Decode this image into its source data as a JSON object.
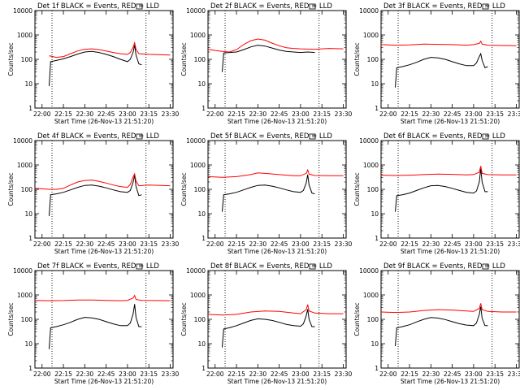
{
  "chart_data": [
    {
      "type": "line",
      "title": "Det 1f BLACK = Events, RED = LLD",
      "xlabel": "Start Time (26-Nov-13 21:51:20)",
      "ylabel": "Counts/sec",
      "xticks": [
        "22:00",
        "22:15",
        "22:30",
        "22:45",
        "23:00",
        "23:15",
        "23:30"
      ],
      "yticks": [
        "1",
        "10",
        "100",
        "1000",
        "10000"
      ],
      "yscale": "log",
      "ylim": [
        1,
        10000
      ],
      "xlim": [
        "21:55",
        "23:32"
      ],
      "vlines": [
        "22:07",
        "23:13"
      ],
      "series": [
        {
          "color": "#000000",
          "x": [
            "22:05",
            "22:06",
            "22:10",
            "22:15",
            "22:20",
            "22:25",
            "22:30",
            "22:35",
            "22:40",
            "22:45",
            "22:50",
            "22:55",
            "23:00",
            "23:02",
            "23:04",
            "23:05",
            "23:06",
            "23:08",
            "23:10"
          ],
          "values": [
            8,
            80,
            90,
            105,
            130,
            165,
            200,
            210,
            190,
            160,
            130,
            100,
            80,
            100,
            200,
            380,
            150,
            65,
            60
          ]
        },
        {
          "color": "#ff0000",
          "x": [
            "22:05",
            "22:10",
            "22:15",
            "22:20",
            "22:25",
            "22:30",
            "22:35",
            "22:40",
            "22:45",
            "22:50",
            "22:55",
            "23:00",
            "23:02",
            "23:04",
            "23:05",
            "23:06",
            "23:08",
            "23:15",
            "23:30"
          ],
          "values": [
            140,
            120,
            130,
            170,
            220,
            260,
            270,
            250,
            220,
            190,
            170,
            160,
            190,
            320,
            480,
            260,
            170,
            160,
            150
          ]
        }
      ]
    },
    {
      "type": "line",
      "title": "Det 2f BLACK = Events, RED = LLD",
      "xlabel": "Start Time (26-Nov-13 21:51:20)",
      "ylabel": "Counts/sec",
      "xticks": [
        "22:00",
        "22:15",
        "22:30",
        "22:45",
        "23:00",
        "23:15",
        "23:30"
      ],
      "yticks": [
        "1",
        "10",
        "100",
        "1000",
        "10000"
      ],
      "yscale": "log",
      "ylim": [
        1,
        10000
      ],
      "xlim": [
        "21:55",
        "23:32"
      ],
      "vlines": [
        "22:07",
        "23:13"
      ],
      "series": [
        {
          "color": "#000000",
          "x": [
            "22:05",
            "22:06",
            "22:10",
            "22:15",
            "22:20",
            "22:25",
            "22:30",
            "22:35",
            "22:40",
            "22:45",
            "22:50",
            "22:55",
            "23:00",
            "23:05",
            "23:10"
          ],
          "values": [
            30,
            180,
            190,
            200,
            250,
            320,
            380,
            350,
            290,
            240,
            210,
            200,
            190,
            200,
            190
          ]
        },
        {
          "color": "#ff0000",
          "x": [
            "21:55",
            "22:00",
            "22:05",
            "22:10",
            "22:15",
            "22:20",
            "22:25",
            "22:30",
            "22:35",
            "22:40",
            "22:45",
            "22:50",
            "22:55",
            "23:00",
            "23:10",
            "23:20",
            "23:30"
          ],
          "values": [
            260,
            230,
            210,
            200,
            250,
            400,
            580,
            680,
            610,
            460,
            360,
            300,
            280,
            270,
            260,
            280,
            270
          ]
        }
      ]
    },
    {
      "type": "line",
      "title": "Det 3f BLACK = Events, RED = LLD",
      "xlabel": "Start Time (26-Nov-13 21:51:20)",
      "ylabel": "Counts/sec",
      "xticks": [
        "22:00",
        "22:15",
        "22:30",
        "22:45",
        "23:00",
        "23:15",
        "23:30"
      ],
      "yticks": [
        "1",
        "10",
        "100",
        "1000",
        "10000"
      ],
      "yscale": "log",
      "ylim": [
        1,
        10000
      ],
      "xlim": [
        "21:55",
        "23:32"
      ],
      "vlines": [
        "22:07",
        "23:13"
      ],
      "series": [
        {
          "color": "#000000",
          "x": [
            "22:05",
            "22:06",
            "22:10",
            "22:15",
            "22:20",
            "22:25",
            "22:30",
            "22:35",
            "22:40",
            "22:45",
            "22:50",
            "22:55",
            "23:00",
            "23:02",
            "23:04",
            "23:05",
            "23:06",
            "23:08",
            "23:10"
          ],
          "values": [
            7,
            45,
            50,
            60,
            75,
            100,
            120,
            115,
            100,
            80,
            65,
            55,
            55,
            70,
            130,
            170,
            90,
            45,
            50
          ]
        },
        {
          "color": "#ff0000",
          "x": [
            "21:55",
            "22:05",
            "22:15",
            "22:25",
            "22:35",
            "22:45",
            "22:55",
            "23:00",
            "23:04",
            "23:05",
            "23:06",
            "23:10",
            "23:20",
            "23:30"
          ],
          "values": [
            400,
            380,
            390,
            420,
            410,
            400,
            380,
            400,
            450,
            550,
            420,
            380,
            370,
            360
          ]
        }
      ]
    },
    {
      "type": "line",
      "title": "Det 4f BLACK = Events, RED = LLD",
      "xlabel": "Start Time (26-Nov-13 21:51:20)",
      "ylabel": "Counts/sec",
      "xticks": [
        "22:00",
        "22:15",
        "22:30",
        "22:45",
        "23:00",
        "23:15",
        "23:30"
      ],
      "yticks": [
        "1",
        "10",
        "100",
        "1000",
        "10000"
      ],
      "yscale": "log",
      "ylim": [
        1,
        10000
      ],
      "xlim": [
        "21:55",
        "23:32"
      ],
      "vlines": [
        "22:07",
        "23:13"
      ],
      "series": [
        {
          "color": "#000000",
          "x": [
            "22:05",
            "22:06",
            "22:10",
            "22:15",
            "22:20",
            "22:25",
            "22:30",
            "22:35",
            "22:40",
            "22:45",
            "22:50",
            "22:55",
            "23:00",
            "23:02",
            "23:04",
            "23:05",
            "23:06",
            "23:08",
            "23:10"
          ],
          "values": [
            8,
            60,
            65,
            75,
            95,
            120,
            145,
            150,
            135,
            115,
            95,
            80,
            75,
            90,
            200,
            380,
            130,
            55,
            60
          ]
        },
        {
          "color": "#ff0000",
          "x": [
            "21:55",
            "22:05",
            "22:10",
            "22:15",
            "22:20",
            "22:25",
            "22:30",
            "22:35",
            "22:40",
            "22:45",
            "22:50",
            "22:55",
            "23:00",
            "23:02",
            "23:04",
            "23:05",
            "23:06",
            "23:08",
            "23:15",
            "23:30"
          ],
          "values": [
            110,
            100,
            100,
            110,
            150,
            200,
            230,
            240,
            210,
            180,
            150,
            130,
            120,
            160,
            330,
            430,
            220,
            140,
            150,
            140
          ]
        }
      ]
    },
    {
      "type": "line",
      "title": "Det 5f BLACK = Events, RED = LLD",
      "xlabel": "Start Time (26-Nov-13 21:51:20)",
      "ylabel": "Counts/sec",
      "xticks": [
        "22:00",
        "22:15",
        "22:30",
        "22:45",
        "23:00",
        "23:15",
        "23:30"
      ],
      "yticks": [
        "1",
        "10",
        "100",
        "1000",
        "10000"
      ],
      "yscale": "log",
      "ylim": [
        1,
        10000
      ],
      "xlim": [
        "21:55",
        "23:32"
      ],
      "vlines": [
        "22:07",
        "23:13"
      ],
      "series": [
        {
          "color": "#000000",
          "x": [
            "22:05",
            "22:06",
            "22:10",
            "22:15",
            "22:20",
            "22:25",
            "22:30",
            "22:35",
            "22:40",
            "22:45",
            "22:50",
            "22:55",
            "23:00",
            "23:02",
            "23:04",
            "23:05",
            "23:06",
            "23:08",
            "23:10"
          ],
          "values": [
            12,
            60,
            65,
            75,
            95,
            120,
            145,
            150,
            135,
            115,
            95,
            80,
            75,
            90,
            180,
            400,
            150,
            70,
            65
          ]
        },
        {
          "color": "#ff0000",
          "x": [
            "21:55",
            "22:05",
            "22:15",
            "22:25",
            "22:30",
            "22:35",
            "22:45",
            "22:55",
            "23:00",
            "23:04",
            "23:05",
            "23:06",
            "23:10",
            "23:20",
            "23:30"
          ],
          "values": [
            330,
            310,
            330,
            400,
            470,
            450,
            400,
            360,
            360,
            450,
            620,
            420,
            370,
            360,
            360
          ]
        }
      ]
    },
    {
      "type": "line",
      "title": "Det 6f BLACK = Events, RED = LLD",
      "xlabel": "Start Time (26-Nov-13 21:51:20)",
      "ylabel": "Counts/sec",
      "xticks": [
        "22:00",
        "22:15",
        "22:30",
        "22:45",
        "23:00",
        "23:15",
        "23:30"
      ],
      "yticks": [
        "1",
        "10",
        "100",
        "1000",
        "10000"
      ],
      "yscale": "log",
      "ylim": [
        1,
        10000
      ],
      "xlim": [
        "21:55",
        "23:32"
      ],
      "vlines": [
        "22:07",
        "23:13"
      ],
      "series": [
        {
          "color": "#000000",
          "x": [
            "22:05",
            "22:06",
            "22:10",
            "22:15",
            "22:20",
            "22:25",
            "22:30",
            "22:35",
            "22:40",
            "22:45",
            "22:50",
            "22:55",
            "23:00",
            "23:02",
            "23:04",
            "23:05",
            "23:06",
            "23:08",
            "23:10"
          ],
          "values": [
            12,
            55,
            60,
            70,
            90,
            115,
            140,
            145,
            130,
            110,
            90,
            75,
            70,
            85,
            200,
            700,
            200,
            80,
            80
          ]
        },
        {
          "color": "#ff0000",
          "x": [
            "21:55",
            "22:05",
            "22:15",
            "22:25",
            "22:35",
            "22:45",
            "22:55",
            "23:00",
            "23:04",
            "23:05",
            "23:06",
            "23:10",
            "23:20",
            "23:30"
          ],
          "values": [
            380,
            370,
            380,
            400,
            420,
            410,
            390,
            400,
            500,
            900,
            450,
            400,
            390,
            390
          ]
        }
      ]
    },
    {
      "type": "line",
      "title": "Det 7f BLACK = Events, RED = LLD",
      "xlabel": "Start Time (26-Nov-13 21:51:20)",
      "ylabel": "Counts/sec",
      "xticks": [
        "22:00",
        "22:15",
        "22:30",
        "22:45",
        "23:00",
        "23:15",
        "23:30"
      ],
      "yticks": [
        "1",
        "10",
        "100",
        "1000",
        "10000"
      ],
      "yscale": "log",
      "ylim": [
        1,
        10000
      ],
      "xlim": [
        "21:55",
        "23:32"
      ],
      "vlines": [
        "22:07",
        "23:13"
      ],
      "series": [
        {
          "color": "#000000",
          "x": [
            "22:05",
            "22:06",
            "22:10",
            "22:15",
            "22:20",
            "22:25",
            "22:30",
            "22:35",
            "22:40",
            "22:45",
            "22:50",
            "22:55",
            "23:00",
            "23:02",
            "23:04",
            "23:05",
            "23:06",
            "23:08",
            "23:10"
          ],
          "values": [
            6,
            45,
            50,
            60,
            75,
            100,
            120,
            115,
            100,
            80,
            65,
            55,
            55,
            70,
            170,
            420,
            120,
            50,
            50
          ]
        },
        {
          "color": "#ff0000",
          "x": [
            "21:55",
            "22:05",
            "22:15",
            "22:25",
            "22:35",
            "22:45",
            "22:55",
            "23:00",
            "23:04",
            "23:05",
            "23:06",
            "23:10",
            "23:20",
            "23:30"
          ],
          "values": [
            600,
            580,
            590,
            620,
            620,
            600,
            580,
            600,
            750,
            950,
            650,
            600,
            590,
            580
          ]
        }
      ]
    },
    {
      "type": "line",
      "title": "Det 8f BLACK = Events, RED = LLD",
      "xlabel": "Start Time (26-Nov-13 21:51:20)",
      "ylabel": "Counts/sec",
      "xticks": [
        "22:00",
        "22:15",
        "22:30",
        "22:45",
        "23:00",
        "23:15",
        "23:30"
      ],
      "yticks": [
        "1",
        "10",
        "100",
        "1000",
        "10000"
      ],
      "yscale": "log",
      "ylim": [
        1,
        10000
      ],
      "xlim": [
        "21:55",
        "23:32"
      ],
      "vlines": [
        "22:07",
        "23:13"
      ],
      "series": [
        {
          "color": "#000000",
          "x": [
            "22:05",
            "22:06",
            "22:10",
            "22:15",
            "22:20",
            "22:25",
            "22:30",
            "22:35",
            "22:40",
            "22:45",
            "22:50",
            "22:55",
            "23:00",
            "23:02",
            "23:04",
            "23:05",
            "23:06",
            "23:08",
            "23:10"
          ],
          "values": [
            7,
            40,
            45,
            55,
            70,
            90,
            105,
            100,
            90,
            75,
            62,
            55,
            52,
            65,
            140,
            260,
            100,
            50,
            50
          ]
        },
        {
          "color": "#ff0000",
          "x": [
            "21:55",
            "22:05",
            "22:15",
            "22:25",
            "22:35",
            "22:45",
            "22:55",
            "23:00",
            "23:04",
            "23:05",
            "23:06",
            "23:10",
            "23:20",
            "23:30"
          ],
          "values": [
            160,
            150,
            160,
            200,
            220,
            210,
            180,
            170,
            250,
            400,
            220,
            180,
            170,
            170
          ]
        }
      ]
    },
    {
      "type": "line",
      "title": "Det 9f BLACK = Events, RED = LLD",
      "xlabel": "Start Time (26-Nov-13 21:51:20)",
      "ylabel": "Counts/sec",
      "xticks": [
        "22:00",
        "22:15",
        "22:30",
        "22:45",
        "23:00",
        "23:15",
        "23:30"
      ],
      "yticks": [
        "1",
        "10",
        "100",
        "1000",
        "10000"
      ],
      "yscale": "log",
      "ylim": [
        1,
        10000
      ],
      "xlim": [
        "21:55",
        "23:32"
      ],
      "vlines": [
        "22:07",
        "23:13"
      ],
      "series": [
        {
          "color": "#000000",
          "x": [
            "22:05",
            "22:06",
            "22:10",
            "22:15",
            "22:20",
            "22:25",
            "22:30",
            "22:35",
            "22:40",
            "22:45",
            "22:50",
            "22:55",
            "23:00",
            "23:02",
            "23:04",
            "23:05",
            "23:06",
            "23:08",
            "23:10"
          ],
          "values": [
            8,
            45,
            50,
            60,
            78,
            100,
            118,
            112,
            98,
            80,
            66,
            58,
            55,
            70,
            160,
            330,
            110,
            55,
            55
          ]
        },
        {
          "color": "#ff0000",
          "x": [
            "21:55",
            "22:05",
            "22:15",
            "22:25",
            "22:35",
            "22:45",
            "22:55",
            "23:00",
            "23:04",
            "23:05",
            "23:06",
            "23:10",
            "23:20",
            "23:30"
          ],
          "values": [
            200,
            190,
            200,
            230,
            250,
            240,
            220,
            210,
            280,
            450,
            250,
            210,
            200,
            200
          ]
        }
      ]
    }
  ]
}
